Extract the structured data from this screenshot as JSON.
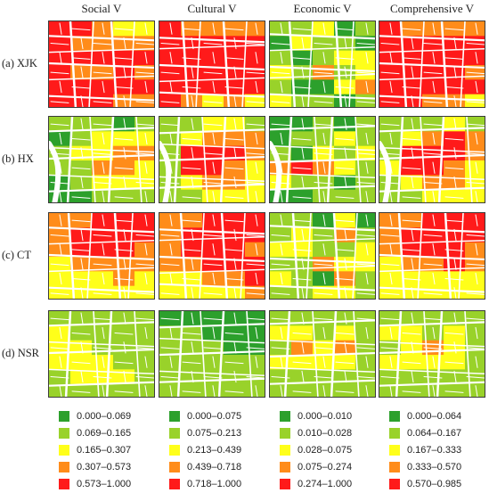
{
  "columns": [
    {
      "id": "social",
      "title": "Social V",
      "legend": [
        "0.000–0.069",
        "0.069–0.165",
        "0.165–0.307",
        "0.307–0.573",
        "0.573–1.000"
      ]
    },
    {
      "id": "cultural",
      "title": "Cultural V",
      "legend": [
        "0.000–0.075",
        "0.075–0.213",
        "0.213–0.439",
        "0.439–0.718",
        "0.718–1.000"
      ]
    },
    {
      "id": "economic",
      "title": "Economic V",
      "legend": [
        "0.000–0.010",
        "0.010–0.028",
        "0.028–0.075",
        "0.075–0.274",
        "0.274–1.000"
      ]
    },
    {
      "id": "comprehensive",
      "title": "Comprehensive V",
      "legend": [
        "0.000–0.064",
        "0.064–0.167",
        "0.167–0.333",
        "0.333–0.570",
        "0.570–0.985"
      ]
    }
  ],
  "rows": [
    {
      "id": "xjk",
      "label": "(a) XJK"
    },
    {
      "id": "hx",
      "label": "(b) HX"
    },
    {
      "id": "ct",
      "label": "(c) CT"
    },
    {
      "id": "nsr",
      "label": "(d) NSR"
    }
  ],
  "class_colors": [
    "#2ca02c",
    "#99d22a",
    "#ffff1a",
    "#ff8c1a",
    "#ff1a1a"
  ],
  "map_levels": {
    "xjk": {
      "social": [
        "44322",
        "43333",
        "44444",
        "43343",
        "44444",
        "44433"
      ],
      "cultural": [
        "43333",
        "44444",
        "44444",
        "44444",
        "44444",
        "43232"
      ],
      "economic": [
        "11201",
        "02110",
        "10122",
        "21312",
        "10023",
        "21101"
      ],
      "comprehensive": [
        "43333",
        "44444",
        "44444",
        "44443",
        "44444",
        "44332"
      ]
    },
    "hx": {
      "social": [
        "11101",
        "01222",
        "12233",
        "11332",
        "01222",
        "00111"
      ],
      "cultural": [
        "11221",
        "12333",
        "14443",
        "14432",
        "12332",
        "11222"
      ],
      "economic": [
        "00101",
        "01121",
        "10212",
        "34321",
        "21101",
        "00111"
      ],
      "comprehensive": [
        "11121",
        "12343",
        "14443",
        "24432",
        "12332",
        "11222"
      ]
    },
    "ct": {
      "social": [
        "33444",
        "34444",
        "34443",
        "23333",
        "22232",
        "22222"
      ],
      "cultural": [
        "33444",
        "34444",
        "34443",
        "33444",
        "22334",
        "22223"
      ],
      "economic": [
        "11020",
        "12131",
        "22112",
        "11322",
        "21031",
        "11221"
      ],
      "comprehensive": [
        "33444",
        "34444",
        "34443",
        "23343",
        "22222",
        "22222"
      ]
    },
    "nsr": {
      "social": [
        "11111",
        "21111",
        "22111",
        "22211",
        "12221",
        "11111"
      ],
      "cultural": [
        "00000",
        "11000",
        "11100",
        "11111",
        "11111",
        "11111"
      ],
      "economic": [
        "11111",
        "22121",
        "13231",
        "22221",
        "11111",
        "11111"
      ],
      "comprehensive": [
        "11111",
        "22121",
        "12321",
        "22221",
        "11111",
        "11111"
      ]
    }
  }
}
